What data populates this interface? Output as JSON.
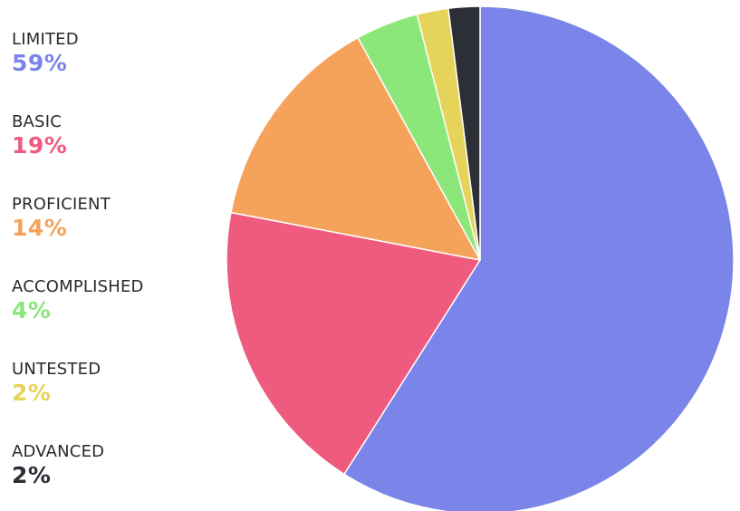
{
  "chart_data": {
    "type": "pie",
    "slices": [
      {
        "label": "LIMITED",
        "display": "59%",
        "value": 59,
        "color": "#7b84e8"
      },
      {
        "label": "BASIC",
        "display": "19%",
        "value": 19,
        "color": "#ef5b7e"
      },
      {
        "label": "PROFICIENT",
        "display": "14%",
        "value": 14,
        "color": "#f5a35a"
      },
      {
        "label": "ACCOMPLISHED",
        "display": "4%",
        "value": 4,
        "color": "#8be77a"
      },
      {
        "label": "UNTESTED",
        "display": "2%",
        "value": 2,
        "color": "#e6d45a"
      },
      {
        "label": "ADVANCED",
        "display": "2%",
        "value": 2,
        "color": "#2d2f36"
      }
    ],
    "legend_position": "left",
    "start": "top, clockwise"
  }
}
